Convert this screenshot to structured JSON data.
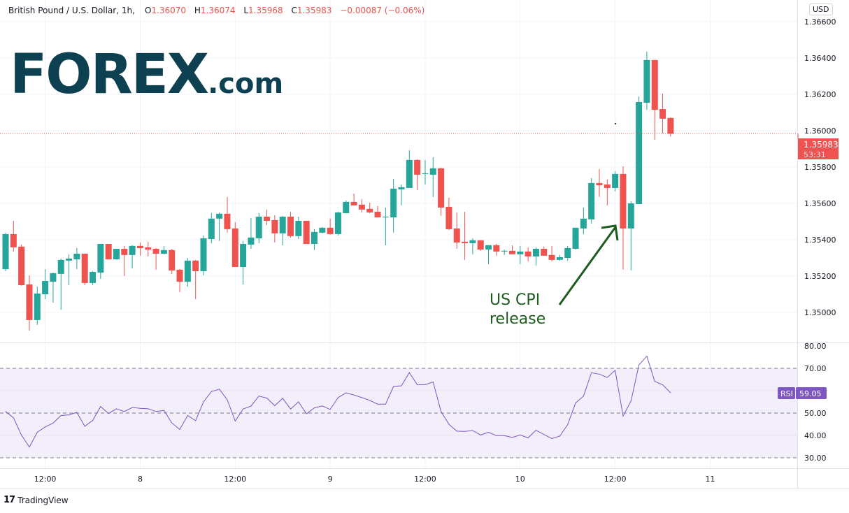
{
  "header": {
    "symbol": "British Pound / U.S. Dollar, 1h,",
    "o_label": "O",
    "o": "1.36070",
    "h_label": "H",
    "h": "1.36074",
    "l_label": "L",
    "l": "1.35968",
    "c_label": "C",
    "c": "1.35983",
    "change": "−0.00087 (−0.06%)"
  },
  "currency": "USD",
  "logo": {
    "main": "FOREX",
    "suffix": ".com"
  },
  "annotation": {
    "line1": "US CPI",
    "line2": "release"
  },
  "current_price": {
    "price": "1.35983",
    "countdown": "53:31"
  },
  "rsi_label": {
    "name": "RSI",
    "value": "59.05"
  },
  "footer": {
    "brand": "TradingView"
  },
  "colors": {
    "up": "#26a69a",
    "down": "#ef5350",
    "rsi": "#7e57c2",
    "annotation": "#1e5b1e",
    "logo": "#0d4050"
  },
  "chart_data": [
    {
      "type": "candlestick",
      "title": "British Pound / U.S. Dollar, 1h",
      "ylim": [
        1.349,
        1.366
      ],
      "y_ticks": [
        "1.36600",
        "1.36400",
        "1.36200",
        "1.36000",
        "1.35800",
        "1.35600",
        "1.35400",
        "1.35200",
        "1.35000"
      ],
      "x_labels": [
        {
          "label": "12:00",
          "index": 5
        },
        {
          "label": "8",
          "index": 17
        },
        {
          "label": "12:00",
          "index": 29
        },
        {
          "label": "9",
          "index": 41
        },
        {
          "label": "12:00",
          "index": 53
        },
        {
          "label": "10",
          "index": 65
        },
        {
          "label": "12:00",
          "index": 77
        },
        {
          "label": "11",
          "index": 89
        }
      ],
      "grid": true,
      "ohlc": [
        [
          1.35238,
          1.35438,
          1.35227,
          1.35431
        ],
        [
          1.35431,
          1.35504,
          1.35335,
          1.35358
        ],
        [
          1.35362,
          1.35373,
          1.35146,
          1.3515
        ],
        [
          1.35154,
          1.35204,
          1.349,
          1.34958
        ],
        [
          1.34958,
          1.35142,
          1.34931,
          1.35104
        ],
        [
          1.351,
          1.35238,
          1.35073,
          1.35173
        ],
        [
          1.35169,
          1.35219,
          1.35054,
          1.35216
        ],
        [
          1.35212,
          1.35296,
          1.35015,
          1.35289
        ],
        [
          1.35285,
          1.3532,
          1.3515,
          1.35296
        ],
        [
          1.35292,
          1.35354,
          1.35238,
          1.35323
        ],
        [
          1.35323,
          1.35323,
          1.3515,
          1.35162
        ],
        [
          1.35162,
          1.35227,
          1.3515,
          1.35223
        ],
        [
          1.35219,
          1.35377,
          1.35185,
          1.35377
        ],
        [
          1.35377,
          1.35377,
          1.35292,
          1.35292
        ],
        [
          1.35292,
          1.3535,
          1.3529,
          1.3535
        ],
        [
          1.3535,
          1.35366,
          1.352,
          1.35316
        ],
        [
          1.35316,
          1.3537,
          1.35242,
          1.35366
        ],
        [
          1.35366,
          1.35385,
          1.35312,
          1.35354
        ],
        [
          1.35358,
          1.35389,
          1.35308,
          1.35346
        ],
        [
          1.3535,
          1.35354,
          1.35235,
          1.35323
        ],
        [
          1.35323,
          1.35366,
          1.3532,
          1.35343
        ],
        [
          1.35343,
          1.3535,
          1.35212,
          1.35231
        ],
        [
          1.35235,
          1.35239,
          1.35112,
          1.35169
        ],
        [
          1.35169,
          1.353,
          1.35142,
          1.35285
        ],
        [
          1.35285,
          1.35289,
          1.35073,
          1.35227
        ],
        [
          1.35227,
          1.35423,
          1.35204,
          1.35408
        ],
        [
          1.35404,
          1.35547,
          1.35381,
          1.35516
        ],
        [
          1.35516,
          1.3555,
          1.35393,
          1.35543
        ],
        [
          1.35543,
          1.35635,
          1.35439,
          1.35458
        ],
        [
          1.35462,
          1.35497,
          1.3525,
          1.3525
        ],
        [
          1.3525,
          1.35393,
          1.35154,
          1.35377
        ],
        [
          1.35373,
          1.3552,
          1.3535,
          1.35412
        ],
        [
          1.35408,
          1.35547,
          1.35381,
          1.35527
        ],
        [
          1.35527,
          1.35566,
          1.35481,
          1.35504
        ],
        [
          1.35508,
          1.35535,
          1.35385,
          1.35435
        ],
        [
          1.35435,
          1.35531,
          1.35369,
          1.35527
        ],
        [
          1.35527,
          1.35554,
          1.35412,
          1.3542
        ],
        [
          1.3542,
          1.35527,
          1.35404,
          1.35504
        ],
        [
          1.35504,
          1.35504,
          1.35377,
          1.35377
        ],
        [
          1.35377,
          1.35458,
          1.35343,
          1.35443
        ],
        [
          1.35439,
          1.3547,
          1.35435,
          1.35466
        ],
        [
          1.35466,
          1.35516,
          1.35427,
          1.35431
        ],
        [
          1.35431,
          1.35554,
          1.35423,
          1.3555
        ],
        [
          1.35546,
          1.35616,
          1.35546,
          1.35608
        ],
        [
          1.35608,
          1.35654,
          1.35589,
          1.35589
        ],
        [
          1.35593,
          1.35623,
          1.3555,
          1.35566
        ],
        [
          1.3557,
          1.35604,
          1.35546,
          1.3555
        ],
        [
          1.35554,
          1.35585,
          1.35523,
          1.35523
        ],
        [
          1.35523,
          1.35577,
          1.35369,
          1.35527
        ],
        [
          1.35523,
          1.35735,
          1.35439,
          1.35681
        ],
        [
          1.35677,
          1.35704,
          1.35589,
          1.35689
        ],
        [
          1.35685,
          1.35893,
          1.35685,
          1.35839
        ],
        [
          1.35839,
          1.35843,
          1.35673,
          1.35758
        ],
        [
          1.35762,
          1.35839,
          1.35704,
          1.35766
        ],
        [
          1.35758,
          1.35854,
          1.35635,
          1.35793
        ],
        [
          1.35793,
          1.35797,
          1.35531,
          1.35577
        ],
        [
          1.35581,
          1.35631,
          1.35454,
          1.35458
        ],
        [
          1.35462,
          1.3555,
          1.3535,
          1.35385
        ],
        [
          1.35389,
          1.35554,
          1.35289,
          1.35381
        ],
        [
          1.35381,
          1.35408,
          1.3532,
          1.35397
        ],
        [
          1.35397,
          1.35397,
          1.35339,
          1.35346
        ],
        [
          1.35346,
          1.3537,
          1.35266,
          1.3537
        ],
        [
          1.3537,
          1.35377,
          1.35312,
          1.35335
        ],
        [
          1.35339,
          1.35346,
          1.35316,
          1.35339
        ],
        [
          1.35339,
          1.35369,
          1.3532,
          1.3532
        ],
        [
          1.3532,
          1.35366,
          1.35266,
          1.35335
        ],
        [
          1.35335,
          1.35358,
          1.35281,
          1.35308
        ],
        [
          1.35308,
          1.35358,
          1.35258,
          1.3535
        ],
        [
          1.3535,
          1.35362,
          1.35312,
          1.35312
        ],
        [
          1.35316,
          1.35366,
          1.35281,
          1.35289
        ],
        [
          1.35289,
          1.35316,
          1.35285,
          1.35304
        ],
        [
          1.353,
          1.35366,
          1.35285,
          1.35354
        ],
        [
          1.3535,
          1.35466,
          1.35346,
          1.35466
        ],
        [
          1.35462,
          1.35577,
          1.35431,
          1.35516
        ],
        [
          1.35512,
          1.35739,
          1.35489,
          1.35712
        ],
        [
          1.35712,
          1.35789,
          1.35635,
          1.357
        ],
        [
          1.35704,
          1.35731,
          1.35589,
          1.35685
        ],
        [
          1.35685,
          1.35777,
          1.35666,
          1.35762
        ],
        [
          1.35762,
          1.35804,
          1.35235,
          1.35462
        ],
        [
          1.35462,
          1.35612,
          1.35231,
          1.356
        ],
        [
          1.35596,
          1.36189,
          1.35596,
          1.36158
        ],
        [
          1.36154,
          1.36435,
          1.36115,
          1.36389
        ],
        [
          1.36389,
          1.36389,
          1.3595,
          1.36115
        ],
        [
          1.36119,
          1.36204,
          1.35985,
          1.36066
        ],
        [
          1.3607,
          1.36074,
          1.35968,
          1.35983
        ]
      ]
    },
    {
      "type": "line",
      "series": [
        {
          "name": "RSI"
        }
      ],
      "ylim": [
        25,
        82
      ],
      "y_ticks": [
        "80.00",
        "70.00",
        "50.00",
        "40.00",
        "30.00"
      ],
      "bands": [
        30,
        50,
        70
      ],
      "values": [
        50.7,
        47.9,
        40.2,
        34.8,
        41.4,
        43.8,
        45.5,
        48.9,
        49.2,
        50.3,
        44.1,
        46.7,
        52.9,
        49.8,
        51.9,
        50.7,
        52.5,
        52.1,
        51.9,
        50.7,
        51.2,
        45.6,
        42.7,
        48.9,
        46.6,
        55.0,
        59.6,
        60.7,
        55.9,
        46.4,
        51.8,
        53.1,
        57.6,
        56.7,
        53.3,
        56.6,
        51.8,
        55.0,
        49.7,
        52.3,
        53.2,
        51.6,
        56.9,
        59.0,
        58.1,
        56.9,
        55.7,
        54.0,
        54.0,
        61.9,
        62.2,
        68.1,
        62.7,
        62.7,
        63.9,
        50.7,
        45.0,
        41.9,
        41.8,
        42.2,
        40.2,
        41.4,
        39.9,
        39.9,
        39.1,
        40.2,
        38.9,
        42.3,
        40.4,
        38.6,
        39.7,
        44.8,
        54.5,
        57.6,
        68.0,
        67.4,
        65.9,
        69.1,
        48.7,
        55.4,
        71.5,
        75.4,
        64.2,
        62.6,
        59.05
      ]
    }
  ]
}
